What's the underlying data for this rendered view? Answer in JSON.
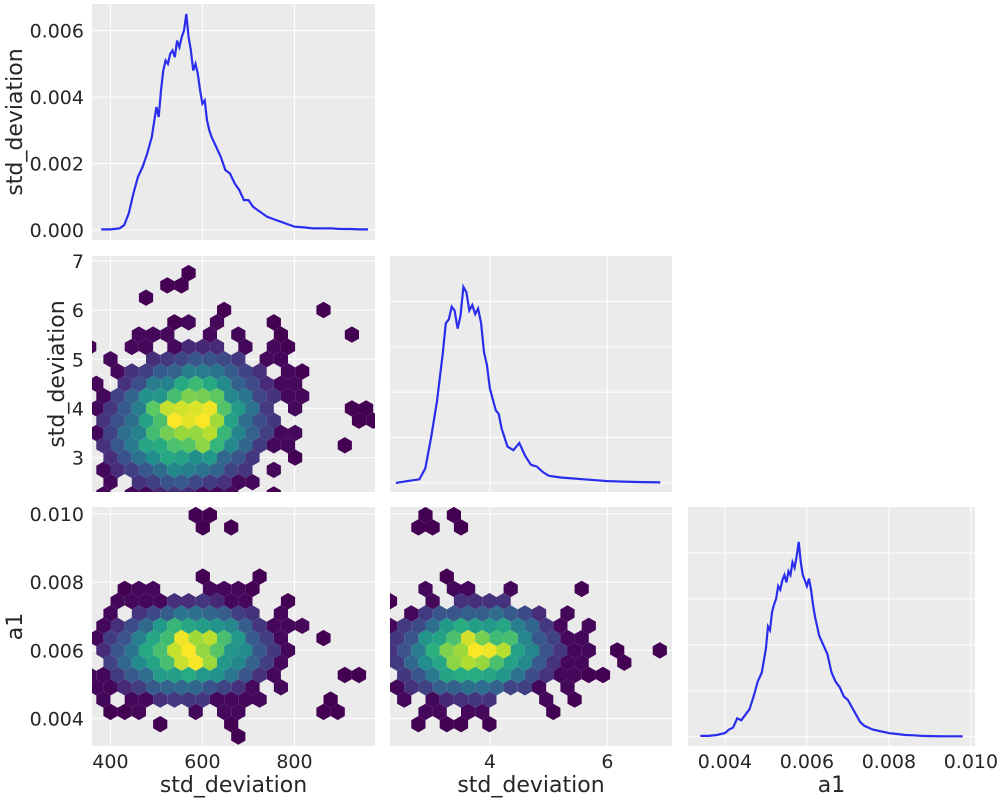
{
  "chart_data": {
    "type": "pair",
    "variables": [
      "std_deviation",
      "std_deviation",
      "a1"
    ],
    "panels": [
      {
        "id": "kde-std-deviation-1",
        "type": "line",
        "kind": "kde",
        "row": 0,
        "col": 0,
        "xlim": [
          360,
          975
        ],
        "ylim": [
          -0.0003,
          0.0068
        ],
        "xticks": [
          400,
          600,
          800
        ],
        "show_xticks": false,
        "yticks": [
          0.0,
          0.002,
          0.004,
          0.006
        ],
        "yticklabels": [
          "0.000",
          "0.002",
          "0.004",
          "0.006"
        ],
        "ylabel": "std_deviation",
        "xlabel": "",
        "x": [
          380,
          400,
          420,
          430,
          440,
          450,
          460,
          470,
          480,
          490,
          500,
          505,
          510,
          515,
          520,
          525,
          530,
          535,
          540,
          545,
          550,
          555,
          560,
          565,
          570,
          575,
          580,
          585,
          590,
          595,
          600,
          605,
          610,
          615,
          620,
          630,
          640,
          650,
          660,
          670,
          680,
          690,
          700,
          710,
          720,
          730,
          740,
          750,
          760,
          770,
          780,
          790,
          800,
          820,
          840,
          860,
          880,
          900,
          920,
          940,
          960
        ],
        "y": [
          2e-05,
          2e-05,
          5e-05,
          0.00015,
          0.0005,
          0.0011,
          0.0016,
          0.0019,
          0.0023,
          0.0028,
          0.0037,
          0.0034,
          0.0042,
          0.0048,
          0.0051,
          0.005,
          0.0053,
          0.0054,
          0.0052,
          0.0057,
          0.0055,
          0.0058,
          0.006,
          0.0065,
          0.0058,
          0.0054,
          0.0048,
          0.005,
          0.0047,
          0.0042,
          0.0038,
          0.0039,
          0.0033,
          0.003,
          0.0028,
          0.0025,
          0.0022,
          0.0018,
          0.0017,
          0.0014,
          0.0012,
          0.0009,
          0.0009,
          0.0007,
          0.0006,
          0.0005,
          0.0004,
          0.00035,
          0.0003,
          0.00025,
          0.0002,
          0.00015,
          0.0001,
          8e-05,
          5e-05,
          5e-05,
          5e-05,
          3e-05,
          3e-05,
          2e-05,
          2e-05
        ]
      },
      {
        "id": "hexbin-std-deviation-vs-std-deviation",
        "type": "heatmap",
        "kind": "hexbin",
        "row": 1,
        "col": 0,
        "xlim": [
          360,
          975
        ],
        "ylim": [
          2.3,
          7.1
        ],
        "xticks": [
          400,
          600,
          800
        ],
        "show_xticks": false,
        "yticks": [
          3,
          4,
          5,
          6,
          7
        ],
        "yticklabels": [
          "3",
          "4",
          "5",
          "6",
          "7"
        ],
        "ylabel": "std_deviation",
        "xlabel": "",
        "x_center": 570,
        "y_center": 3.75,
        "sx": 95,
        "sy": 0.75,
        "rho": 0.12,
        "max_density": 1.0,
        "outliers": [
          [
            580,
            6.85
          ],
          [
            480,
            6.3
          ],
          [
            540,
            6.5
          ],
          [
            860,
            6.0
          ],
          [
            920,
            5.5
          ],
          [
            940,
            4.0
          ],
          [
            955,
            3.75
          ],
          [
            900,
            3.3
          ]
        ]
      },
      {
        "id": "kde-std-deviation-2",
        "type": "line",
        "kind": "kde",
        "row": 1,
        "col": 1,
        "xlim": [
          2.3,
          7.1
        ],
        "ylim": [
          -0.05,
          1.25
        ],
        "xticks": [
          4,
          6
        ],
        "show_xticks": false,
        "yticks": [
          0.0,
          0.25,
          0.5,
          0.75,
          1.0
        ],
        "yticklabels": [],
        "ylabel": "",
        "xlabel": "",
        "x": [
          2.4,
          2.6,
          2.8,
          2.9,
          3.0,
          3.1,
          3.2,
          3.25,
          3.3,
          3.35,
          3.4,
          3.45,
          3.5,
          3.55,
          3.6,
          3.65,
          3.7,
          3.75,
          3.8,
          3.85,
          3.9,
          3.95,
          4.0,
          4.05,
          4.1,
          4.15,
          4.2,
          4.3,
          4.4,
          4.5,
          4.6,
          4.7,
          4.8,
          4.9,
          5.0,
          5.2,
          5.4,
          5.6,
          5.8,
          6.0,
          6.2,
          6.5,
          6.9
        ],
        "y": [
          0.0,
          0.01,
          0.02,
          0.08,
          0.25,
          0.45,
          0.72,
          0.88,
          0.9,
          0.97,
          0.95,
          0.85,
          0.92,
          1.08,
          1.05,
          0.95,
          0.98,
          0.93,
          0.96,
          0.88,
          0.72,
          0.65,
          0.52,
          0.46,
          0.4,
          0.38,
          0.3,
          0.2,
          0.18,
          0.22,
          0.15,
          0.1,
          0.09,
          0.06,
          0.04,
          0.03,
          0.025,
          0.02,
          0.015,
          0.01,
          0.008,
          0.005,
          0.003
        ]
      },
      {
        "id": "hexbin-std-deviation-vs-a1",
        "type": "heatmap",
        "kind": "hexbin",
        "row": 2,
        "col": 0,
        "xlim": [
          360,
          975
        ],
        "ylim": [
          0.0032,
          0.0102
        ],
        "xticks": [
          400,
          600,
          800
        ],
        "xticklabels": [
          "400",
          "600",
          "800"
        ],
        "show_xticks": true,
        "yticks": [
          0.004,
          0.006,
          0.008,
          0.01
        ],
        "yticklabels": [
          "0.004",
          "0.006",
          "0.008",
          "0.010"
        ],
        "ylabel": "a1",
        "xlabel": "std_deviation",
        "x_center": 570,
        "y_center": 0.006,
        "sx": 95,
        "sy": 0.00075,
        "rho": 0.05,
        "max_density": 1.0,
        "outliers": [
          [
            600,
            0.0098
          ],
          [
            660,
            0.0096
          ],
          [
            880,
            0.0044
          ],
          [
            940,
            0.0052
          ],
          [
            900,
            0.0054
          ],
          [
            680,
            0.0035
          ]
        ]
      },
      {
        "id": "hexbin-std-deviation-vs-a1-2",
        "type": "heatmap",
        "kind": "hexbin",
        "row": 2,
        "col": 1,
        "xlim": [
          2.3,
          7.1
        ],
        "ylim": [
          0.0032,
          0.0102
        ],
        "xticks": [
          4,
          6
        ],
        "xticklabels": [
          "4",
          "6"
        ],
        "show_xticks": true,
        "yticks": [
          0.004,
          0.006,
          0.008,
          0.01
        ],
        "yticklabels": [],
        "ylabel": "",
        "xlabel": "std_deviation",
        "x_center": 3.75,
        "y_center": 0.006,
        "sx": 0.75,
        "sy": 0.00075,
        "rho": 0.05,
        "max_density": 1.0,
        "outliers": [
          [
            2.9,
            0.0098
          ],
          [
            3.4,
            0.0098
          ],
          [
            5.6,
            0.0078
          ],
          [
            6.9,
            0.006
          ],
          [
            6.2,
            0.0058
          ],
          [
            5.8,
            0.0052
          ]
        ]
      },
      {
        "id": "kde-a1",
        "type": "line",
        "kind": "kde",
        "row": 2,
        "col": 2,
        "xlim": [
          0.0031,
          0.0101
        ],
        "ylim": [
          -0.05,
          1.25
        ],
        "xticks": [
          0.004,
          0.006,
          0.008,
          0.01
        ],
        "xticklabels": [
          "0.004",
          "0.006",
          "0.008",
          "0.010"
        ],
        "show_xticks": true,
        "yticks": [
          0.0,
          0.25,
          0.5,
          0.75,
          1.0
        ],
        "yticklabels": [],
        "ylabel": "",
        "xlabel": "a1",
        "x": [
          0.0034,
          0.0036,
          0.0038,
          0.004,
          0.0041,
          0.0042,
          0.0043,
          0.0044,
          0.0045,
          0.0046,
          0.0047,
          0.0048,
          0.0049,
          0.005,
          0.00505,
          0.0051,
          0.00515,
          0.0052,
          0.00525,
          0.0053,
          0.00535,
          0.0054,
          0.00545,
          0.0055,
          0.00555,
          0.0056,
          0.00565,
          0.0057,
          0.00575,
          0.0058,
          0.00585,
          0.0059,
          0.00595,
          0.006,
          0.00605,
          0.0061,
          0.00615,
          0.0062,
          0.00625,
          0.0063,
          0.0064,
          0.0065,
          0.0066,
          0.0067,
          0.0068,
          0.0069,
          0.007,
          0.0071,
          0.0072,
          0.0073,
          0.0074,
          0.0076,
          0.0078,
          0.008,
          0.0082,
          0.0084,
          0.0086,
          0.0088,
          0.009,
          0.0094,
          0.0098
        ],
        "y": [
          0.005,
          0.005,
          0.01,
          0.02,
          0.04,
          0.05,
          0.1,
          0.09,
          0.12,
          0.15,
          0.22,
          0.3,
          0.35,
          0.48,
          0.6,
          0.58,
          0.68,
          0.72,
          0.75,
          0.82,
          0.8,
          0.85,
          0.88,
          0.84,
          0.9,
          0.88,
          0.95,
          0.92,
          0.98,
          1.06,
          0.95,
          0.88,
          0.85,
          0.82,
          0.86,
          0.8,
          0.72,
          0.65,
          0.6,
          0.55,
          0.5,
          0.45,
          0.35,
          0.3,
          0.27,
          0.22,
          0.2,
          0.16,
          0.12,
          0.08,
          0.06,
          0.04,
          0.03,
          0.02,
          0.015,
          0.01,
          0.008,
          0.005,
          0.004,
          0.003,
          0.003
        ]
      }
    ],
    "colors": {
      "panel_background": "#ebebeb",
      "grid": "#ffffff",
      "kde_line": "#2a2eec",
      "colormap": "viridis",
      "text": "#262626"
    }
  }
}
